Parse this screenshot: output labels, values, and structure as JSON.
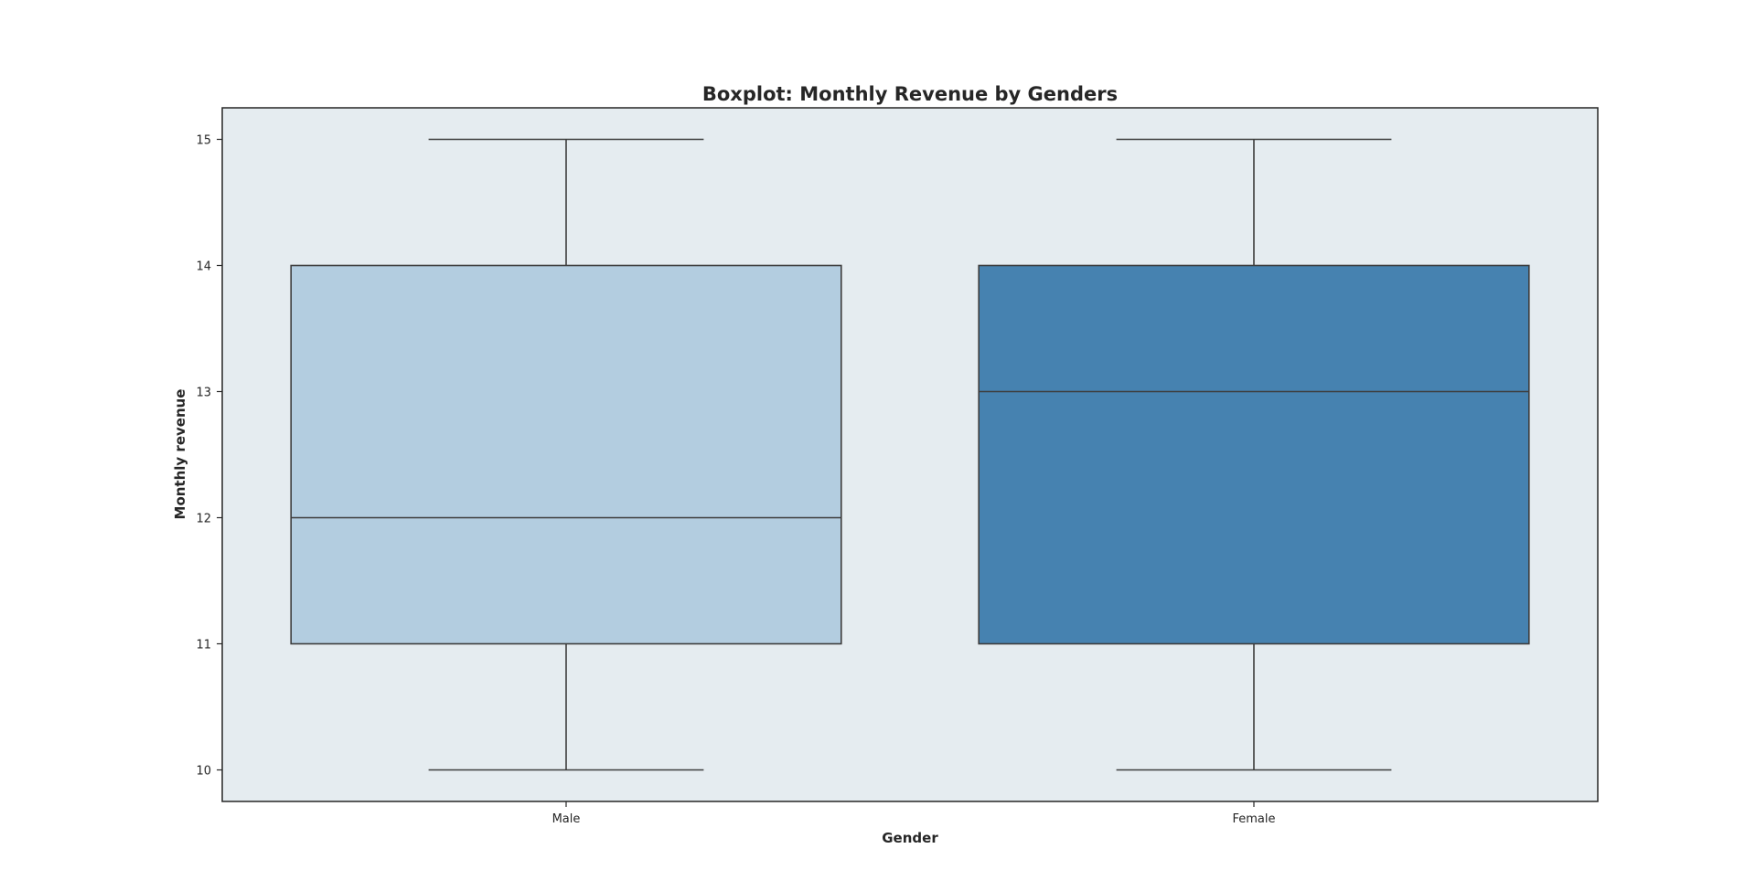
{
  "chart_data": {
    "type": "boxplot",
    "title": "Boxplot: Monthly Revenue by Genders",
    "xlabel": "Gender",
    "ylabel": "Monthly revenue",
    "categories": [
      "Male",
      "Female"
    ],
    "boxes": [
      {
        "category": "Male",
        "whisker_low": 10,
        "q1": 11,
        "median": 12,
        "q3": 14,
        "whisker_high": 15,
        "color": "#b3cde0"
      },
      {
        "category": "Female",
        "whisker_low": 10,
        "q1": 11,
        "median": 13,
        "q3": 14,
        "whisker_high": 15,
        "color": "#4682b0"
      }
    ],
    "yticks": [
      10,
      11,
      12,
      13,
      14,
      15
    ],
    "ylim": [
      9.75,
      15.25
    ],
    "grid": false,
    "colors": {
      "plot_background": "#e5ecf0",
      "frame": "#262626",
      "box_edge": "#3d3d3d"
    }
  }
}
